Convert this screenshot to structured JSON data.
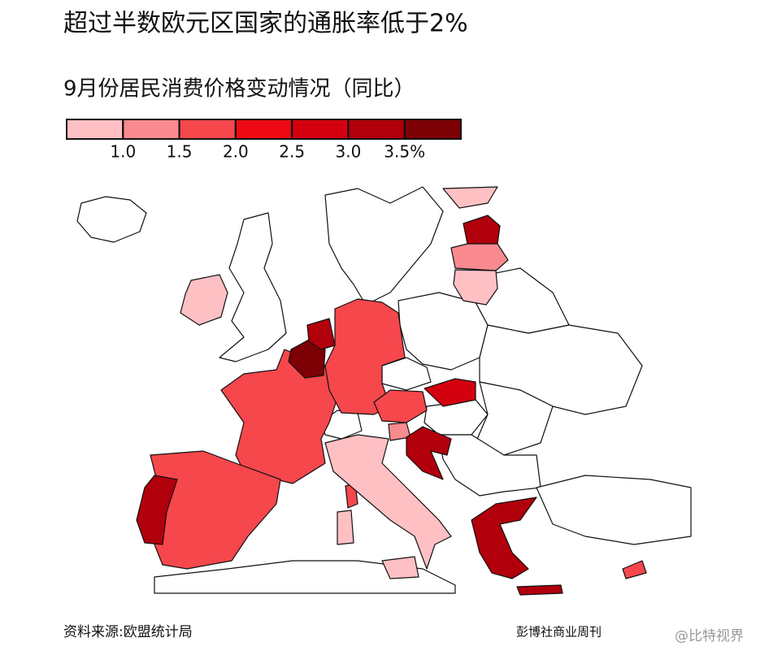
{
  "title": "超过半数欧元区国家的通胀率低于2%",
  "subtitle": "9月份居民消费价格变动情况（同比）",
  "legend": {
    "colors": [
      "#ffc0c4",
      "#f98a8f",
      "#f5474c",
      "#ee0a14",
      "#d40010",
      "#b1000c",
      "#7d0005"
    ],
    "xlim": [
      0.5,
      4.0
    ],
    "xticks": [
      {
        "value": 1,
        "label": "1.0"
      },
      {
        "value": 1.5,
        "label": "1.5"
      },
      {
        "value": 2,
        "label": "2.0"
      },
      {
        "value": 2.5,
        "label": "2.5"
      },
      {
        "value": 3,
        "label": "3.0"
      },
      {
        "value": 3.5,
        "label": "3.5%"
      }
    ]
  },
  "source": "资料来源:欧盟统计局",
  "credit": "彭博社商业周刊",
  "watermark": "@比特视界"
}
